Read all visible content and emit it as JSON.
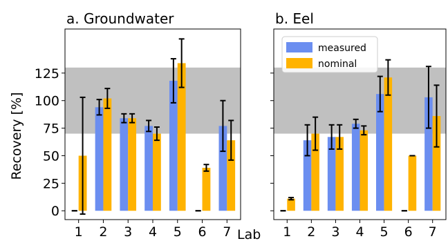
{
  "chart_data": {
    "type": "bar",
    "ylabel": "Recovery [%]",
    "xlabel": "Lab",
    "y_ticks": [
      0,
      25,
      50,
      75,
      100,
      125
    ],
    "ylim": [
      -8,
      165
    ],
    "categories": [
      "1",
      "2",
      "3",
      "4",
      "5",
      "6",
      "7"
    ],
    "reference_band": {
      "from": 70,
      "to": 130,
      "color": "#c0c0c0"
    },
    "legend": {
      "placement": "top-left of panel b",
      "entries": [
        "measured",
        "nominal"
      ]
    },
    "colors": {
      "measured": "#6b8ef0",
      "nominal": "#ffb300",
      "error_bar": "#000000"
    },
    "panels": [
      {
        "title": "a. Groundwater",
        "series": [
          {
            "name": "measured",
            "values": [
              0,
              94,
              84,
              77,
              118,
              0,
              77
            ],
            "errors": [
              0,
              7,
              4,
              5,
              20,
              0,
              23
            ]
          },
          {
            "name": "nominal",
            "values": [
              50,
              102,
              84,
              70,
              134,
              39,
              64
            ],
            "errors": [
              53,
              9,
              4,
              6,
              22,
              3,
              18
            ]
          }
        ]
      },
      {
        "title": "b. Eel",
        "series": [
          {
            "name": "measured",
            "values": [
              0,
              64,
              67,
              79,
              106,
              0,
              103
            ],
            "errors": [
              0,
              14,
              11,
              4,
              16,
              0,
              28
            ]
          },
          {
            "name": "nominal",
            "values": [
              11,
              70,
              67,
              73,
              121,
              50,
              86
            ],
            "errors": [
              1,
              15,
              11,
              4,
              16,
              0,
              28
            ]
          }
        ]
      }
    ]
  }
}
